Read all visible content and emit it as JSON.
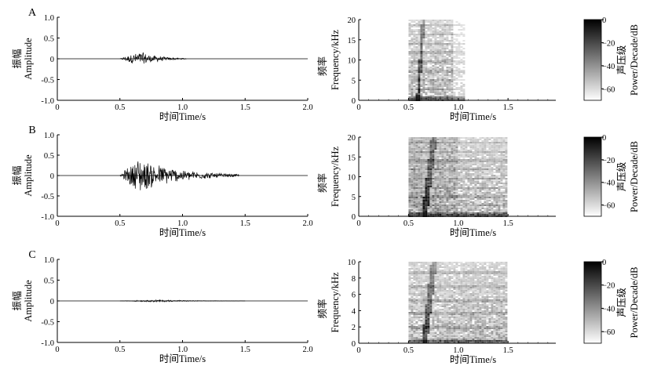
{
  "chart_data": [
    {
      "panel": "A",
      "type": "line",
      "xlabel": "时间Time/s",
      "ylabel_cn": "振幅",
      "ylabel_en": "Amplitude",
      "xlim": [
        0,
        2.0
      ],
      "ylim": [
        -1.0,
        1.0
      ],
      "xticks": [
        "0",
        "0.5",
        "1.0",
        "1.5",
        "2.0"
      ],
      "yticks": [
        "1.0",
        "0.5",
        "0",
        "-0.5",
        "-1.0"
      ],
      "signal": {
        "start": 0.5,
        "end": 1.03,
        "peak_time": 0.66,
        "peak_amp": 0.2
      }
    },
    {
      "panel": "A",
      "type": "heatmap",
      "xlabel": "时间Time/s",
      "ylabel_cn": "频率",
      "ylabel_en": "Frequency/kHz",
      "xlim": [
        0,
        1.98
      ],
      "ylim": [
        0,
        20
      ],
      "xticks": [
        "0",
        "0.5",
        "1.0",
        "1.5"
      ],
      "yticks": [
        "0",
        "5",
        "10",
        "15",
        "20"
      ],
      "signal": {
        "start": 0.5,
        "end": 1.05
      },
      "colorbar": {
        "label_cn": "声压级",
        "label_en": "Power/Decade/dB",
        "ticks": [
          "0",
          "−20",
          "−40",
          "−60"
        ],
        "range": [
          -70,
          0
        ]
      }
    },
    {
      "panel": "B",
      "type": "line",
      "xlabel": "时间Time/s",
      "ylabel_cn": "振幅",
      "ylabel_en": "Amplitude",
      "xlim": [
        0,
        2.0
      ],
      "ylim": [
        -1.0,
        1.0
      ],
      "xticks": [
        "0",
        "0.5",
        "1.0",
        "1.5",
        "2.0"
      ],
      "yticks": [
        "1.0",
        "0.5",
        "0",
        "-0.5",
        "-1.0"
      ],
      "signal": {
        "start": 0.5,
        "end": 1.45,
        "peak_time": 0.65,
        "peak_amp": 0.48
      }
    },
    {
      "panel": "B",
      "type": "heatmap",
      "xlabel": "时间Time/s",
      "ylabel_cn": "频率",
      "ylabel_en": "Frequency/kHz",
      "xlim": [
        0,
        1.98
      ],
      "ylim": [
        0,
        20
      ],
      "xticks": [
        "0",
        "0.5",
        "1.0",
        "1.5"
      ],
      "yticks": [
        "0",
        "5",
        "10",
        "15",
        "20"
      ],
      "signal": {
        "start": 0.5,
        "end": 1.48
      },
      "colorbar": {
        "label_cn": "声压级",
        "label_en": "Power/Decade/dB",
        "ticks": [
          "0",
          "−20",
          "−40",
          "−60"
        ],
        "range": [
          -70,
          0
        ]
      }
    },
    {
      "panel": "C",
      "type": "line",
      "xlabel": "时间Time/s",
      "ylabel_cn": "振幅",
      "ylabel_en": "Amplitude",
      "xlim": [
        0,
        2.0
      ],
      "ylim": [
        -1.0,
        1.0
      ],
      "xticks": [
        "0",
        "0.5",
        "1.0",
        "1.5",
        "2.0"
      ],
      "yticks": [
        "1.0",
        "0.5",
        "0",
        "-0.5",
        "-1.0"
      ],
      "signal": {
        "start": 0.5,
        "end": 1.5,
        "peak_time": 0.8,
        "peak_amp": 0.03
      }
    },
    {
      "panel": "C",
      "type": "heatmap",
      "xlabel": "时间Time/s",
      "ylabel_cn": "频率",
      "ylabel_en": "Frequency/kHz",
      "xlim": [
        0,
        1.98
      ],
      "ylim": [
        0,
        10
      ],
      "xticks": [
        "0",
        "0.5",
        "1.0",
        "1.5"
      ],
      "yticks": [
        "0",
        "2",
        "4",
        "6",
        "8",
        "10"
      ],
      "signal": {
        "start": 0.5,
        "end": 1.48
      },
      "colorbar": {
        "label_cn": "声压级",
        "label_en": "Power/Decade/dB",
        "ticks": [
          "0",
          "−20",
          "−40",
          "−60"
        ],
        "range": [
          -70,
          0
        ]
      }
    }
  ]
}
